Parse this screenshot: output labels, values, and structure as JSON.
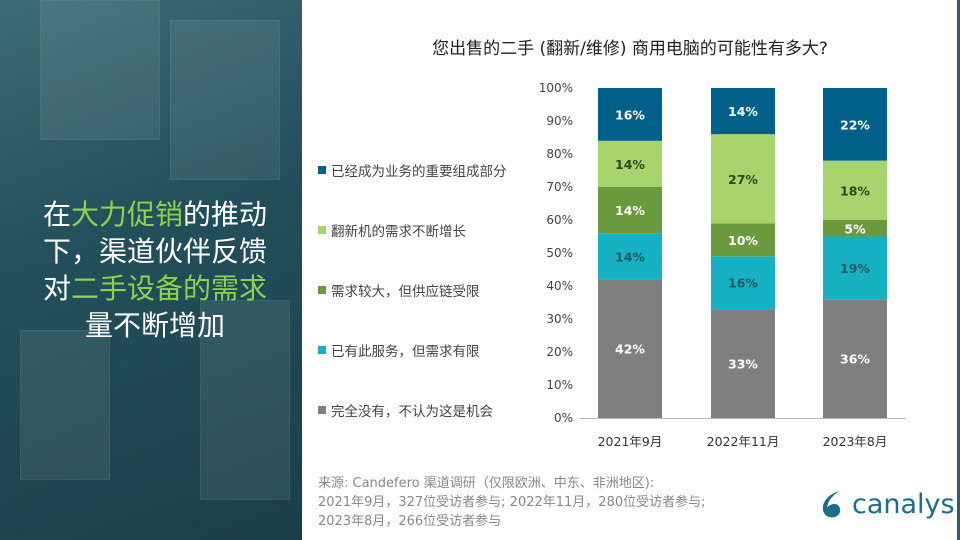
{
  "headline": {
    "parts": [
      {
        "text": "在",
        "hl": false
      },
      {
        "text": "大力促销",
        "hl": true
      },
      {
        "text": "的推动",
        "hl": false
      },
      {
        "text": "\n下，渠道伙伴反馈\n对",
        "hl": false
      },
      {
        "text": "二手设备的需求",
        "hl": true
      },
      {
        "text": "\n量不断增加",
        "hl": false
      }
    ]
  },
  "colors": {
    "highlight": "#8fd14f"
  },
  "source": {
    "line1": "来源: Candefero 渠道调研（仅限欧洲、中东、非洲地区):",
    "line2": "2021年9月，327位受访者参与; 2022年11月，280位受访者参与;",
    "line3": "2023年8月，266位受访者参与"
  },
  "logo": {
    "text": "canalys"
  },
  "chart_data": {
    "type": "bar",
    "stacked": true,
    "title": "您出售的二手 (翻新/维修) 商用电脑的可能性有多大?",
    "categories": [
      "2021年9月",
      "2022年11月",
      "2023年8月"
    ],
    "ylim": [
      0,
      100
    ],
    "yticks": [
      "0%",
      "10%",
      "20%",
      "30%",
      "40%",
      "50%",
      "60%",
      "70%",
      "80%",
      "90%",
      "100%"
    ],
    "legend_position": "left",
    "series": [
      {
        "name": "完全没有，不认为这是机会",
        "values": [
          42,
          33,
          36
        ],
        "color": "#7f7f7f",
        "label_color": "#ffffff"
      },
      {
        "name": "已有此服务，但需求有限",
        "values": [
          14,
          16,
          19
        ],
        "color": "#16b1c2",
        "label_color": "#1d5a66"
      },
      {
        "name": "需求较大，但供应链受限",
        "values": [
          14,
          10,
          5
        ],
        "color": "#6b9a3e",
        "label_color": "#ffffff"
      },
      {
        "name": "翻新机的需求不断增长",
        "values": [
          14,
          27,
          18
        ],
        "color": "#a7d46c",
        "label_color": "#2d4a1a"
      },
      {
        "name": "已经成为业务的重要组成部分",
        "values": [
          16,
          14,
          22
        ],
        "color": "#00608a",
        "label_color": "#ffffff"
      }
    ]
  }
}
